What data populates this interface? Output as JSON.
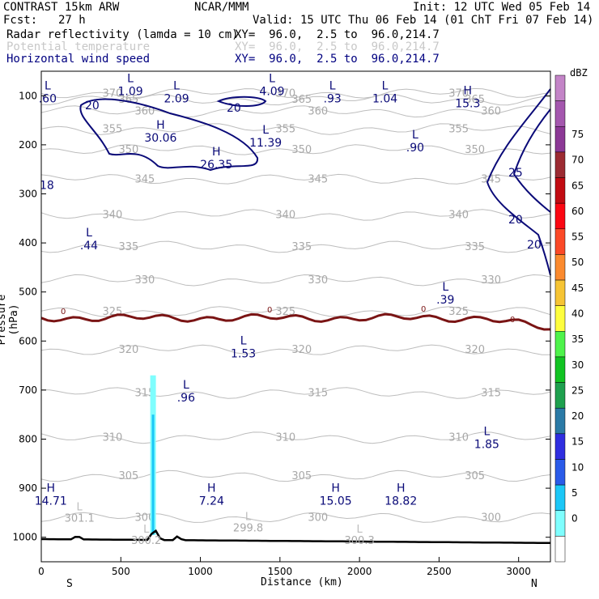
{
  "header": {
    "model": "CONTRAST 15km ARW",
    "org": "NCAR/MMM",
    "init": "Init: 12 UTC Wed 05 Feb 14",
    "fcst_label": "Fcst:",
    "fcst_value": "27 h",
    "valid": "Valid: 15 UTC Thu 06 Feb 14 (01 ChT Fri 07 Feb 14)",
    "fields": [
      {
        "name": "Radar reflectivity (lamda = 10 cm)",
        "xy": "XY=  96.0,  2.5 to  96.0,214.7"
      },
      {
        "name": "Potential temperature",
        "xy": "XY=  96.0,  2.5 to  96.0,214.7"
      },
      {
        "name": "Horizontal wind speed",
        "xy": "XY=  96.0,  2.5 to  96.0,214.7"
      }
    ]
  },
  "chart_data": {
    "type": "cross-section",
    "xlabel": "Distance (km)",
    "ylabel": "Pressure (hPa)",
    "x_ticks": [
      0,
      500,
      1000,
      1500,
      2000,
      2500,
      3000
    ],
    "x_range": [
      0,
      3200
    ],
    "y_ticks": [
      100,
      200,
      300,
      400,
      500,
      600,
      700,
      800,
      900,
      1000
    ],
    "y_range": [
      50,
      1050
    ],
    "left_end": "S",
    "right_end": "N",
    "colorbar": {
      "unit": "dBZ",
      "levels": [
        0,
        5,
        10,
        15,
        20,
        25,
        30,
        35,
        40,
        45,
        50,
        55,
        60,
        65,
        70,
        75
      ],
      "colors": [
        "#ffffff",
        "#7ffefe",
        "#1cc7f7",
        "#2a5be9",
        "#2f2ee0",
        "#2b7aa6",
        "#1ea04e",
        "#11c322",
        "#4ef34b",
        "#fefe3e",
        "#f6c434",
        "#fb8a2e",
        "#fb4927",
        "#fb0712",
        "#c10b12",
        "#9c2b32",
        "#8c3996",
        "#a457ae",
        "#c384c7"
      ]
    },
    "theta_contours": [
      {
        "value": 370,
        "p": 95,
        "label": "370"
      },
      {
        "value": 365,
        "p": 108,
        "label": "365"
      },
      {
        "value": 360,
        "p": 132,
        "label": "360"
      },
      {
        "value": 355,
        "p": 168,
        "label": "355"
      },
      {
        "value": 350,
        "p": 210,
        "label": "350"
      },
      {
        "value": 345,
        "p": 270,
        "label": "345"
      },
      {
        "value": 340,
        "p": 343,
        "label": "340"
      },
      {
        "value": 335,
        "p": 408,
        "label": "335"
      },
      {
        "value": 330,
        "p": 476,
        "label": "330"
      },
      {
        "value": 325,
        "p": 540,
        "label": "325"
      },
      {
        "value": 320,
        "p": 618,
        "label": "320"
      },
      {
        "value": 315,
        "p": 706,
        "label": "315"
      },
      {
        "value": 310,
        "p": 797,
        "label": "310"
      },
      {
        "value": 305,
        "p": 875,
        "label": "305"
      },
      {
        "value": 300,
        "p": 960,
        "label": "300"
      }
    ],
    "zero_line_label": "0",
    "wind_contours": [
      {
        "value": 20,
        "label": "20"
      },
      {
        "value": 25,
        "label": "25"
      }
    ],
    "reflectivity_column": {
      "x_km": 700,
      "p_top": 670,
      "p_bottom": 995
    },
    "extrema": [
      {
        "type": "L",
        "value": ".60",
        "x": 40,
        "p": 110
      },
      {
        "type": "L",
        "value": "1.09",
        "x": 560,
        "p": 95
      },
      {
        "type": "L",
        "value": "2.09",
        "x": 850,
        "p": 110
      },
      {
        "type": "L",
        "value": "4.09",
        "x": 1450,
        "p": 95
      },
      {
        "type": "L",
        "value": ".93",
        "x": 1830,
        "p": 110
      },
      {
        "type": "L",
        "value": "1.04",
        "x": 2160,
        "p": 110
      },
      {
        "type": "H",
        "value": "15.3",
        "x": 2680,
        "p": 120
      },
      {
        "type": "H",
        "value": "30.06",
        "x": 750,
        "p": 190
      },
      {
        "type": "H",
        "value": "26.35",
        "x": 1100,
        "p": 245
      },
      {
        "type": "L",
        "value": "11.39",
        "x": 1410,
        "p": 200
      },
      {
        "type": "L",
        "value": ".90",
        "x": 2350,
        "p": 210
      },
      {
        "type": "L",
        "value": ".44",
        "x": 300,
        "p": 410
      },
      {
        "type": "L",
        "value": ".39",
        "x": 2540,
        "p": 520
      },
      {
        "type": "L",
        "value": "1.53",
        "x": 1270,
        "p": 630
      },
      {
        "type": "L",
        "value": ".96",
        "x": 910,
        "p": 720
      },
      {
        "type": "L",
        "value": "1.85",
        "x": 2800,
        "p": 815
      },
      {
        "type": "H",
        "value": "14.71",
        "x": 60,
        "p": 930
      },
      {
        "type": "H",
        "value": "7.24",
        "x": 1070,
        "p": 930
      },
      {
        "type": "H",
        "value": "15.05",
        "x": 1850,
        "p": 930
      },
      {
        "type": "H",
        "value": "18.82",
        "x": 2260,
        "p": 930
      }
    ],
    "theta_extrema": [
      {
        "type": "L",
        "value": "301.1",
        "x": 240,
        "p": 965
      },
      {
        "type": "L",
        "value": "299.8",
        "x": 1300,
        "p": 985
      },
      {
        "type": "L",
        "value": "300.2",
        "x": 660,
        "p": 1010
      },
      {
        "type": "L",
        "value": "300.3",
        "x": 2000,
        "p": 1010
      }
    ],
    "edge_labels": [
      {
        "value": "18",
        "x": 35,
        "p": 290
      }
    ]
  }
}
